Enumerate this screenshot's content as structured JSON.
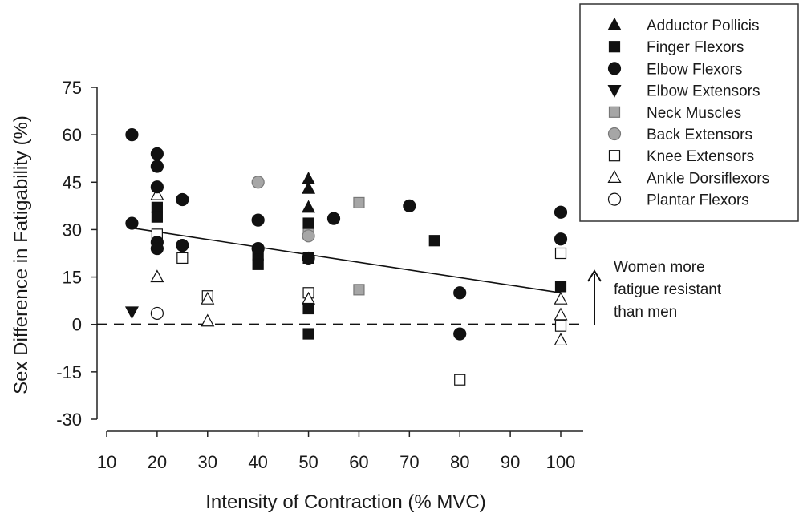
{
  "chart_data": {
    "type": "scatter",
    "title": "",
    "xlabel": "Intensity of Contraction (% MVC)",
    "ylabel": "Sex Difference in Fatigability (%)",
    "xlim": [
      10,
      100
    ],
    "ylim": [
      -30,
      75
    ],
    "xticks": [
      10,
      20,
      30,
      40,
      50,
      60,
      70,
      80,
      90,
      100
    ],
    "yticks": [
      -30,
      -15,
      0,
      15,
      30,
      45,
      60,
      75
    ],
    "grid": false,
    "legend_position": "top-right",
    "series": [
      {
        "name": "Adductor Pollicis",
        "marker": "triangle-up",
        "fill": "#111111",
        "x": [
          50,
          50,
          50
        ],
        "y": [
          46,
          43,
          37
        ]
      },
      {
        "name": "Finger Flexors",
        "marker": "square",
        "fill": "#111111",
        "x": [
          20,
          20,
          40,
          40,
          50,
          50,
          50,
          50,
          75,
          100
        ],
        "y": [
          37,
          34,
          22,
          19,
          32,
          21,
          5,
          -3,
          26.5,
          12
        ]
      },
      {
        "name": "Elbow Flexors",
        "marker": "circle",
        "fill": "#111111",
        "x": [
          15,
          15,
          20,
          20,
          20,
          20,
          20,
          25,
          25,
          40,
          40,
          50,
          55,
          70,
          80,
          80,
          100,
          100
        ],
        "y": [
          60,
          32,
          54,
          50,
          43.5,
          26,
          24,
          39.5,
          25,
          33,
          24,
          21,
          33.5,
          37.5,
          10,
          -3,
          35.5,
          27
        ]
      },
      {
        "name": "Elbow Extensors",
        "marker": "triangle-down",
        "fill": "#111111",
        "x": [
          15
        ],
        "y": [
          4
        ]
      },
      {
        "name": "Neck Muscles",
        "marker": "square",
        "fill": "#a6a6a6",
        "x": [
          60,
          60,
          50
        ],
        "y": [
          38.5,
          11,
          29
        ]
      },
      {
        "name": "Back Extensors",
        "marker": "circle",
        "fill": "#a6a6a6",
        "x": [
          40,
          50
        ],
        "y": [
          45,
          28
        ]
      },
      {
        "name": "Knee Extensors",
        "marker": "square",
        "fill": "#ffffff",
        "x": [
          20,
          25,
          30,
          50,
          80,
          100,
          100
        ],
        "y": [
          28.5,
          21,
          9,
          10,
          -17.5,
          22.5,
          -0.5
        ]
      },
      {
        "name": "Ankle Dorsiflexors",
        "marker": "triangle-up",
        "fill": "#ffffff",
        "x": [
          20,
          20,
          30,
          30,
          50,
          100,
          100,
          100
        ],
        "y": [
          41,
          15,
          8,
          1,
          8,
          8,
          3,
          -5
        ]
      },
      {
        "name": "Plantar Flexors",
        "marker": "circle",
        "fill": "#ffffff",
        "x": [
          20
        ],
        "y": [
          3.5
        ]
      }
    ],
    "trend_line": {
      "x": [
        15,
        100
      ],
      "y": [
        30.5,
        10
      ]
    },
    "reference_line": {
      "y": 0,
      "style": "dashed"
    },
    "annotation": {
      "lines": [
        "Women more",
        "fatigue resistant",
        "than men"
      ],
      "arrow": "up"
    }
  }
}
